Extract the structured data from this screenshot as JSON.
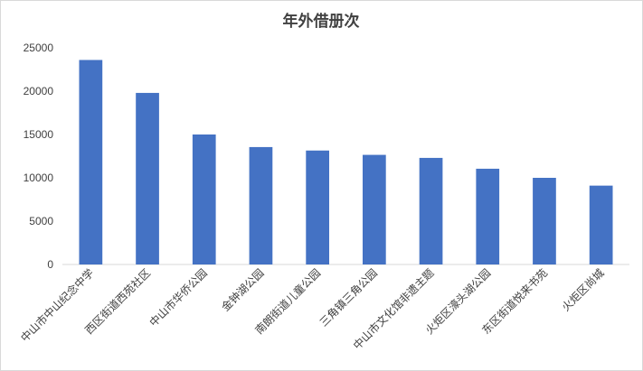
{
  "chart_data": {
    "type": "bar",
    "title": "年外借册次",
    "categories": [
      "中山市中山纪念中学",
      "西区街道西苑社区",
      "中山市华侨公园",
      "金钟湖公园",
      "南朗街道儿童公园",
      "三角镇三角公园",
      "中山市文化馆非遗主题",
      "火炬区濠头湖公园",
      "东区街道悦来书苑",
      "火炬区尚城"
    ],
    "values": [
      23600,
      19800,
      15000,
      13550,
      13150,
      12650,
      12300,
      11050,
      10000,
      9100
    ],
    "ylim": [
      0,
      25000
    ],
    "yticks": [
      0,
      5000,
      10000,
      15000,
      20000,
      25000
    ],
    "xlabel": "",
    "ylabel": "",
    "grid": false,
    "bar_color": "#4472c4"
  }
}
